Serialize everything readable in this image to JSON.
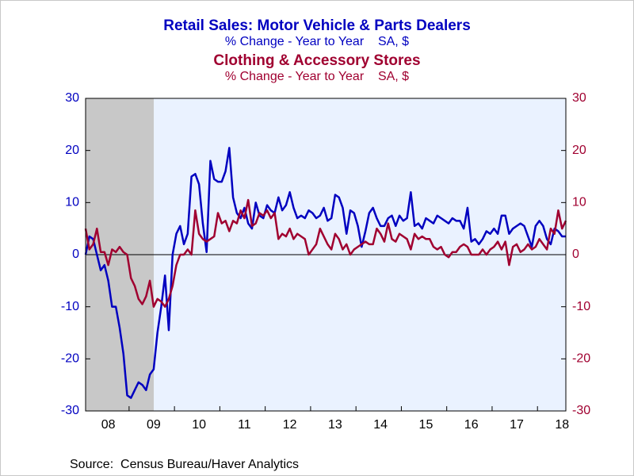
{
  "chart_data": {
    "type": "line",
    "source": "Source:  Census Bureau/Haver Analytics",
    "categories": [
      null,
      null,
      null,
      null,
      null,
      null,
      "08",
      null,
      null,
      null,
      null,
      null,
      null,
      null,
      null,
      null,
      null,
      null,
      "09",
      null,
      null,
      null,
      null,
      null,
      null,
      null,
      null,
      null,
      null,
      null,
      "10",
      null,
      null,
      null,
      null,
      null,
      null,
      null,
      null,
      null,
      null,
      null,
      "11",
      null,
      null,
      null,
      null,
      null,
      null,
      null,
      null,
      null,
      null,
      null,
      "12",
      null,
      null,
      null,
      null,
      null,
      null,
      null,
      null,
      null,
      null,
      null,
      "13",
      null,
      null,
      null,
      null,
      null,
      null,
      null,
      null,
      null,
      null,
      null,
      "14",
      null,
      null,
      null,
      null,
      null,
      null,
      null,
      null,
      null,
      null,
      null,
      "15",
      null,
      null,
      null,
      null,
      null,
      null,
      null,
      null,
      null,
      null,
      null,
      "16",
      null,
      null,
      null,
      null,
      null,
      null,
      null,
      null,
      null,
      null,
      null,
      "17",
      null,
      null,
      null,
      null,
      null,
      null,
      null,
      null,
      null,
      null,
      null,
      "18",
      null
    ],
    "series": [
      {
        "name": "Retail Sales: Motor Vehicle & Parts Dealers",
        "subtitle": "% Change - Year to Year    SA, $",
        "color": "#0000c0",
        "axis": "y",
        "values": [
          0,
          3.5,
          3,
          0,
          -3,
          -2,
          -5,
          -10,
          -10,
          -14,
          -19,
          -27,
          -27.5,
          -26,
          -24.5,
          -25,
          -26,
          -23,
          -22,
          -15,
          -10,
          -4,
          -14.5,
          0,
          4,
          5.5,
          2,
          4,
          15,
          15.5,
          13.5,
          6,
          0.5,
          18,
          14.5,
          14,
          14,
          16,
          20.5,
          11,
          8,
          7,
          9,
          6,
          5,
          10,
          7.5,
          7,
          9.5,
          8.5,
          8,
          11,
          8.5,
          9.5,
          12,
          9,
          7,
          7.5,
          7,
          8.5,
          8,
          7,
          7.5,
          9,
          6.5,
          7,
          11.5,
          11,
          9,
          4,
          8.5,
          8,
          5.5,
          1.5,
          4.5,
          8,
          9,
          7,
          5.5,
          5.5,
          7,
          7.5,
          5.5,
          7.5,
          6.5,
          7,
          12,
          5.5,
          6,
          5,
          7,
          6.5,
          6,
          7.5,
          7,
          6.5,
          6,
          7,
          6.5,
          6.5,
          5,
          9,
          2.5,
          3,
          2,
          3,
          4.5,
          4,
          5,
          4,
          7.5,
          7.5,
          4,
          5,
          5.5,
          6,
          5.5,
          3.5,
          1.5,
          5.5,
          6.5,
          5.5,
          3,
          2,
          5,
          4.5,
          3.5,
          3.5
        ]
      },
      {
        "name": "Clothing & Accessory Stores",
        "subtitle": "% Change - Year to Year    SA, $",
        "color": "#a00030",
        "axis": "y2",
        "values": [
          5,
          1,
          2,
          5,
          0.5,
          0.5,
          -2,
          1,
          0.5,
          1.5,
          0.5,
          0,
          -4.5,
          -6,
          -8.5,
          -9.5,
          -8,
          -5,
          -10,
          -8.5,
          -9,
          -10,
          -8.5,
          -6,
          -2,
          0,
          0,
          1,
          0,
          8.5,
          4,
          3,
          2.5,
          3,
          3.5,
          8,
          6,
          6.5,
          4.5,
          6.5,
          6,
          8.5,
          7,
          10.5,
          5.5,
          6,
          8,
          7.5,
          8.5,
          7,
          8,
          3,
          4,
          3.5,
          5,
          3,
          4,
          3.5,
          3,
          0,
          1,
          2,
          5,
          3.5,
          2,
          1,
          4,
          3,
          1,
          2,
          0,
          1,
          1.5,
          2,
          2.5,
          2,
          2,
          5,
          4,
          2.5,
          6,
          3,
          2.5,
          4,
          3.5,
          3,
          1,
          4,
          3,
          3.5,
          3,
          3,
          1.5,
          1,
          1.5,
          0,
          -0.5,
          0.5,
          0.5,
          1.5,
          2,
          1.5,
          0,
          0,
          0,
          1,
          0,
          1,
          1.5,
          2.5,
          1,
          2.5,
          -2,
          1.5,
          2,
          0.5,
          1,
          2,
          1,
          1.5,
          3,
          2,
          1,
          5,
          4,
          8.5,
          5,
          6.5
        ]
      }
    ],
    "ylim": [
      -30,
      30
    ],
    "yticks": [
      -30,
      -20,
      -10,
      0,
      10,
      20,
      30
    ],
    "y2lim": [
      -30,
      30
    ],
    "y2ticks": [
      -30,
      -20,
      -10,
      0,
      10,
      20,
      30
    ]
  }
}
